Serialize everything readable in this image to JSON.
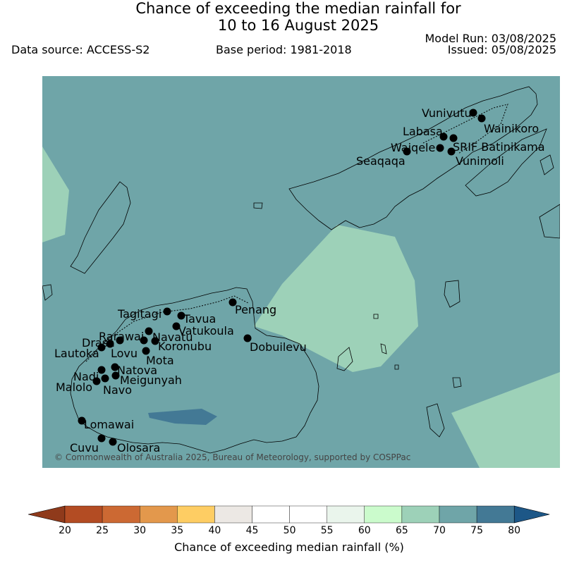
{
  "title": {
    "line1": "Chance of exceeding the median rainfall for",
    "line2": "10 to 16 August 2025"
  },
  "meta": {
    "data_source": "Data source: ACCESS-S2",
    "base_period": "Base period: 1981-2018",
    "model_run": "Model Run: 03/08/2025",
    "issued": "Issued: 05/08/2025"
  },
  "map": {
    "copyright": "© Commonwealth of Australia 2025, Bureau of Meteorology, supported by COSPPac",
    "background_color": "#6fa5a8",
    "stations": [
      {
        "name": "Vunivutu"
      },
      {
        "name": "Wainikoro"
      },
      {
        "name": "Labasa"
      },
      {
        "name": "SRIF Batinikama"
      },
      {
        "name": "Waiqele"
      },
      {
        "name": "Seaqaqa"
      },
      {
        "name": "Vunimoli"
      },
      {
        "name": "Tagitagi"
      },
      {
        "name": "Tavua"
      },
      {
        "name": "Penang"
      },
      {
        "name": "Vatukoula"
      },
      {
        "name": "Rarawai"
      },
      {
        "name": "Navatu"
      },
      {
        "name": "Drasa"
      },
      {
        "name": "Koronubu"
      },
      {
        "name": "Lautoka"
      },
      {
        "name": "Lovu"
      },
      {
        "name": "Mota"
      },
      {
        "name": "Dobuilevu"
      },
      {
        "name": "Natova"
      },
      {
        "name": "Nadi"
      },
      {
        "name": "Meigunyah"
      },
      {
        "name": "Malolo"
      },
      {
        "name": "Navo"
      },
      {
        "name": "Lomawai"
      },
      {
        "name": "Cuvu"
      },
      {
        "name": "Olosara"
      }
    ]
  },
  "colorbar": {
    "title": "Chance of exceeding median rainfall (%)",
    "ticks": [
      "20",
      "25",
      "30",
      "35",
      "40",
      "45",
      "50",
      "55",
      "60",
      "65",
      "70",
      "75",
      "80"
    ],
    "colors": [
      "#b34c23",
      "#cc6933",
      "#e3984c",
      "#fecd63",
      "#ece8e4",
      "#ffffff",
      "#ffffff",
      "#eaf5ec",
      "#cbfbcc",
      "#9dd1b8",
      "#6fa5a8",
      "#437995"
    ],
    "under_color": "#8f3a1b",
    "over_color": "#1d5787"
  }
}
